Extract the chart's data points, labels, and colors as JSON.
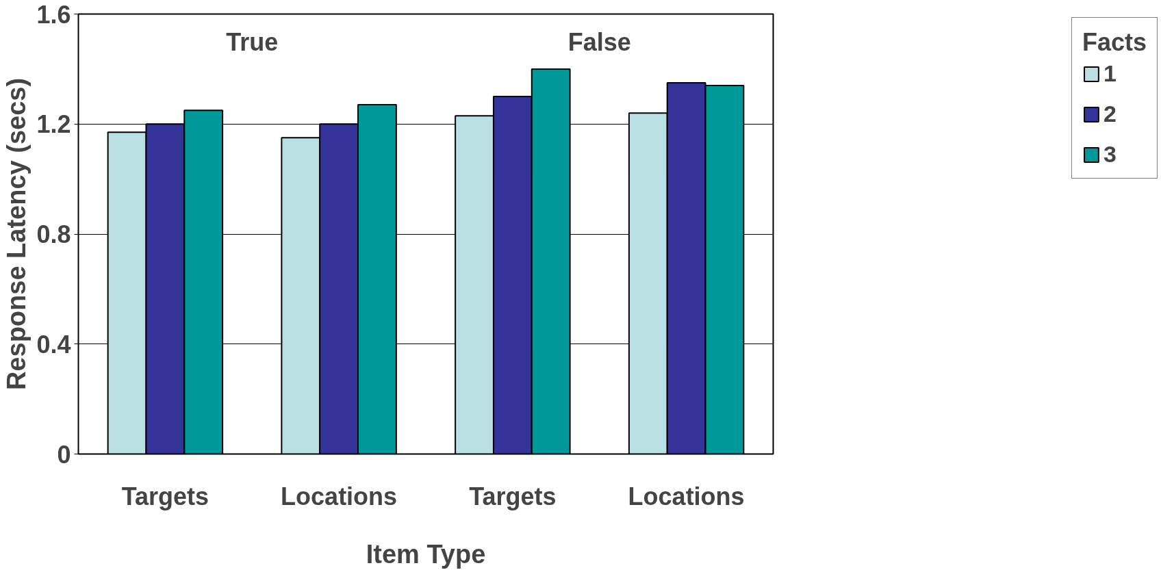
{
  "chart_data": {
    "type": "bar",
    "xlabel": "Item Type",
    "ylabel": "Response Latency (secs)",
    "legend_title": "Facts",
    "categories": [
      "Targets",
      "Locations",
      "Targets",
      "Locations"
    ],
    "series": [
      {
        "name": "1",
        "color": "#bbe0e3",
        "values": [
          1.17,
          1.15,
          1.23,
          1.24
        ]
      },
      {
        "name": "2",
        "color": "#333399",
        "values": [
          1.2,
          1.2,
          1.3,
          1.35
        ]
      },
      {
        "name": "3",
        "color": "#009999",
        "values": [
          1.25,
          1.27,
          1.4,
          1.34
        ]
      }
    ],
    "annotations": [
      "True",
      "False"
    ],
    "ylim": [
      0,
      1.6
    ],
    "yticks": [
      0,
      0.4,
      0.8,
      1.2,
      1.6
    ],
    "grid": "y",
    "legend": "right"
  }
}
